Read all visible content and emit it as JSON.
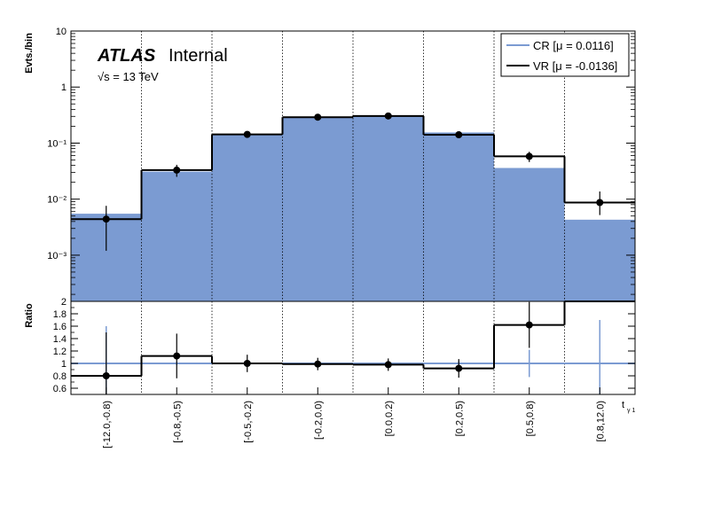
{
  "figure": {
    "experiment_label": "ATLAS",
    "status_label": "Internal",
    "energy_label": "√s = 13 TeV"
  },
  "chart_data": [
    {
      "panel": "main",
      "type": "histogram",
      "ylabel": "Evts./bin",
      "yscale": "log",
      "ylim": [
        0.00015,
        10
      ],
      "ytick_labels": [
        "10",
        "1",
        "10⁻¹",
        "10⁻²",
        "10⁻³"
      ],
      "ytick_values": [
        10,
        1,
        0.1,
        0.01,
        0.001
      ],
      "grid": "vertical dotted at bin edges",
      "legend_position": "top-right",
      "categories": [
        "[-12.0,-0.8)",
        "[-0.8,-0.5)",
        "[-0.5,-0.2)",
        "[-0.2,0.0)",
        "[0.0,0.2)",
        "[0.2,0.5)",
        "[0.5,0.8)",
        "[0.8,12.0)"
      ],
      "series": [
        {
          "name": "CR [μ = 0.0116]",
          "style": "filled",
          "color": "#7b9bd2",
          "values": [
            0.0055,
            0.031,
            0.145,
            0.29,
            0.31,
            0.155,
            0.036,
            0.0043
          ]
        },
        {
          "name": "VR [μ = -0.0136]",
          "style": "step with markers",
          "color": "#000000",
          "values": [
            0.0044,
            0.033,
            0.143,
            0.29,
            0.305,
            0.141,
            0.058,
            0.0087
          ],
          "err_low": [
            0.0032,
            0.008,
            0.015,
            0.025,
            0.03,
            0.015,
            0.012,
            0.0035
          ],
          "err_high": [
            0.0032,
            0.008,
            0.015,
            0.025,
            0.03,
            0.015,
            0.012,
            0.005
          ]
        }
      ]
    },
    {
      "panel": "ratio",
      "type": "histogram",
      "ylabel": "Ratio",
      "xlabel": "t",
      "xlabel_sub": "γ 1",
      "ylim": [
        0.5,
        2.0
      ],
      "ytick_labels": [
        "2",
        "1.8",
        "1.6",
        "1.4",
        "1.2",
        "1",
        "0.8",
        "0.6"
      ],
      "ytick_values": [
        2.0,
        1.8,
        1.6,
        1.4,
        1.2,
        1.0,
        0.8,
        0.6
      ],
      "categories": [
        "[-12.0,-0.8)",
        "[-0.8,-0.5)",
        "[-0.5,-0.2)",
        "[-0.2,0.0)",
        "[0.0,0.2)",
        "[0.2,0.5)",
        "[0.5,0.8)",
        "[0.8,12.0)"
      ],
      "series": [
        {
          "style": "reference line with errors",
          "color": "#7b9bd2",
          "values": [
            1,
            1,
            1,
            1,
            1,
            1,
            1,
            1
          ],
          "err": [
            0.6,
            0.03,
            0.04,
            0.03,
            0.04,
            0.04,
            0.22,
            0.7
          ]
        },
        {
          "style": "step with markers",
          "color": "#000000",
          "values": [
            0.8,
            1.12,
            1.0,
            0.99,
            0.98,
            0.92,
            1.62,
            2.0
          ],
          "err": [
            0.7,
            0.36,
            0.14,
            0.1,
            0.1,
            0.15,
            0.37,
            0
          ],
          "show_marker": [
            true,
            true,
            true,
            true,
            true,
            true,
            true,
            false
          ]
        }
      ]
    }
  ]
}
